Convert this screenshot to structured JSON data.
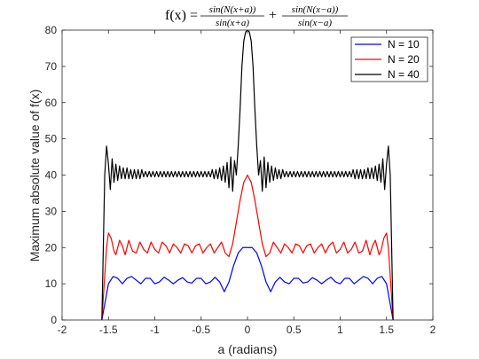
{
  "chart_data": {
    "type": "line",
    "title": {
      "lhs": "f(x) =",
      "term1_num": "sin(N(x+a))",
      "term1_den": "sin(x+a)",
      "plus": "+",
      "term2_num": "sin(N(x−a))",
      "term2_den": "sin(x−a)"
    },
    "xlabel": "a (radians)",
    "ylabel": "Maximum absolute value of f(x)",
    "xlim": [
      -2,
      2
    ],
    "ylim": [
      0,
      80
    ],
    "xticks": [
      -2,
      -1.5,
      -1,
      -0.5,
      0,
      0.5,
      1,
      1.5,
      2
    ],
    "xtick_labels": [
      "-2",
      "-1.5",
      "-1",
      "-0.5",
      "0",
      "0.5",
      "1",
      "1.5",
      "2"
    ],
    "yticks": [
      0,
      10,
      20,
      30,
      40,
      50,
      60,
      70,
      80
    ],
    "ytick_labels": [
      "0",
      "10",
      "20",
      "30",
      "40",
      "50",
      "60",
      "70",
      "80"
    ],
    "legend_position": "top-right",
    "series": [
      {
        "name": "N = 10",
        "N": 10,
        "color": "#0000ff",
        "x": [
          -1.5708,
          -1.5,
          -1.45,
          -1.4,
          -1.35,
          -1.3,
          -1.25,
          -1.2,
          -1.15,
          -1.1,
          -1.05,
          -1.0,
          -0.95,
          -0.9,
          -0.85,
          -0.8,
          -0.75,
          -0.7,
          -0.65,
          -0.6,
          -0.55,
          -0.5,
          -0.45,
          -0.4,
          -0.35,
          -0.3,
          -0.25,
          -0.2,
          -0.15,
          -0.1,
          -0.05,
          0,
          0.05,
          0.1,
          0.15,
          0.2,
          0.25,
          0.3,
          0.35,
          0.4,
          0.45,
          0.5,
          0.55,
          0.6,
          0.65,
          0.7,
          0.75,
          0.8,
          0.85,
          0.9,
          0.95,
          1.0,
          1.05,
          1.1,
          1.15,
          1.2,
          1.25,
          1.3,
          1.35,
          1.4,
          1.45,
          1.5,
          1.5708
        ],
        "y": [
          0,
          10.0,
          12.0,
          11.5,
          10.0,
          11.5,
          12.0,
          11.0,
          10.0,
          11.5,
          11.5,
          10.0,
          10.5,
          11.8,
          11.0,
          10.0,
          11.0,
          11.7,
          10.5,
          10.2,
          11.5,
          11.5,
          10.0,
          10.5,
          11.8,
          10.5,
          7.8,
          10.5,
          15.0,
          18.5,
          20.0,
          20.0,
          20.0,
          18.5,
          15.0,
          10.5,
          7.8,
          10.5,
          11.8,
          10.5,
          10.0,
          11.5,
          11.5,
          10.2,
          10.5,
          11.7,
          11.0,
          10.0,
          11.0,
          11.8,
          10.5,
          10.0,
          11.5,
          11.5,
          10.0,
          11.0,
          12.0,
          11.5,
          10.0,
          11.5,
          12.0,
          10.0,
          0
        ]
      },
      {
        "name": "N = 20",
        "N": 20,
        "color": "#ff0000",
        "x": [
          -1.5708,
          -1.52,
          -1.5,
          -1.47,
          -1.44,
          -1.42,
          -1.38,
          -1.35,
          -1.32,
          -1.28,
          -1.24,
          -1.2,
          -1.16,
          -1.12,
          -1.08,
          -1.04,
          -1.0,
          -0.96,
          -0.92,
          -0.88,
          -0.84,
          -0.8,
          -0.76,
          -0.72,
          -0.68,
          -0.64,
          -0.6,
          -0.56,
          -0.52,
          -0.48,
          -0.44,
          -0.4,
          -0.36,
          -0.32,
          -0.28,
          -0.24,
          -0.2,
          -0.16,
          -0.12,
          -0.08,
          -0.04,
          0,
          0.04,
          0.08,
          0.12,
          0.16,
          0.2,
          0.24,
          0.28,
          0.32,
          0.36,
          0.4,
          0.44,
          0.48,
          0.52,
          0.56,
          0.6,
          0.64,
          0.68,
          0.72,
          0.76,
          0.8,
          0.84,
          0.88,
          0.92,
          0.96,
          1.0,
          1.04,
          1.08,
          1.12,
          1.16,
          1.2,
          1.24,
          1.28,
          1.32,
          1.35,
          1.38,
          1.42,
          1.44,
          1.47,
          1.5,
          1.52,
          1.5708
        ],
        "y": [
          0,
          20.0,
          24.0,
          22.5,
          19.0,
          18.0,
          22.0,
          20.5,
          18.0,
          22.0,
          19.0,
          18.5,
          21.5,
          19.5,
          18.5,
          21.5,
          19.5,
          18.5,
          21.5,
          20.5,
          18.5,
          21.0,
          20.0,
          18.5,
          21.0,
          20.5,
          18.5,
          20.5,
          21.0,
          18.5,
          20.0,
          21.0,
          18.5,
          20.0,
          21.5,
          18.5,
          17.5,
          21.0,
          27.0,
          33.0,
          38.0,
          40.0,
          38.0,
          33.0,
          27.0,
          21.0,
          17.5,
          18.5,
          21.5,
          20.0,
          18.5,
          21.0,
          20.0,
          18.5,
          21.0,
          20.5,
          18.5,
          20.5,
          21.0,
          18.5,
          20.0,
          21.0,
          18.5,
          20.5,
          21.5,
          18.5,
          19.5,
          21.5,
          18.5,
          19.5,
          21.5,
          18.5,
          19.0,
          22.0,
          18.0,
          20.5,
          22.0,
          18.0,
          19.0,
          22.5,
          24.0,
          20.0,
          0
        ]
      },
      {
        "name": "N = 40",
        "N": 40,
        "color": "#000000",
        "x": [
          -1.5708,
          -1.54,
          -1.52,
          -1.5,
          -1.48,
          -1.46,
          -1.44,
          -1.42,
          -1.4,
          -1.38,
          -1.36,
          -1.34,
          -1.32,
          -1.3,
          -1.28,
          -1.26,
          -1.24,
          -1.22,
          -1.2,
          -1.18,
          -1.16,
          -1.14,
          -1.12,
          -1.1,
          -1.08,
          -1.06,
          -1.04,
          -1.02,
          -1.0,
          -0.98,
          -0.96,
          -0.94,
          -0.92,
          -0.9,
          -0.88,
          -0.86,
          -0.84,
          -0.82,
          -0.8,
          -0.78,
          -0.76,
          -0.74,
          -0.72,
          -0.7,
          -0.68,
          -0.66,
          -0.64,
          -0.62,
          -0.6,
          -0.58,
          -0.56,
          -0.54,
          -0.52,
          -0.5,
          -0.48,
          -0.46,
          -0.44,
          -0.42,
          -0.4,
          -0.38,
          -0.36,
          -0.34,
          -0.32,
          -0.3,
          -0.28,
          -0.26,
          -0.24,
          -0.22,
          -0.2,
          -0.18,
          -0.16,
          -0.14,
          -0.12,
          -0.1,
          -0.08,
          -0.06,
          -0.04,
          -0.02,
          0,
          0.02,
          0.04,
          0.06,
          0.08,
          0.1,
          0.12,
          0.14,
          0.16,
          0.18,
          0.2,
          0.22,
          0.24,
          0.26,
          0.28,
          0.3,
          0.32,
          0.34,
          0.36,
          0.38,
          0.4,
          0.42,
          0.44,
          0.46,
          0.48,
          0.5,
          0.52,
          0.54,
          0.56,
          0.58,
          0.6,
          0.62,
          0.64,
          0.66,
          0.68,
          0.7,
          0.72,
          0.74,
          0.76,
          0.78,
          0.8,
          0.82,
          0.84,
          0.86,
          0.88,
          0.9,
          0.92,
          0.94,
          0.96,
          0.98,
          1.0,
          1.02,
          1.04,
          1.06,
          1.08,
          1.1,
          1.12,
          1.14,
          1.16,
          1.18,
          1.2,
          1.22,
          1.24,
          1.26,
          1.28,
          1.3,
          1.32,
          1.34,
          1.36,
          1.38,
          1.4,
          1.42,
          1.44,
          1.46,
          1.48,
          1.5,
          1.52,
          1.54,
          1.5708
        ],
        "y": [
          0,
          40.0,
          48.0,
          43.0,
          36.0,
          44.5,
          38.0,
          43.0,
          38.5,
          42.5,
          39.0,
          42.0,
          39.0,
          42.0,
          39.0,
          41.5,
          39.0,
          41.5,
          39.0,
          41.5,
          39.0,
          41.5,
          39.5,
          41.0,
          39.5,
          41.0,
          39.5,
          41.0,
          39.5,
          41.0,
          39.5,
          41.0,
          39.5,
          41.0,
          39.5,
          41.0,
          39.5,
          41.0,
          39.5,
          41.0,
          39.5,
          41.0,
          39.5,
          41.0,
          39.5,
          41.0,
          39.5,
          41.0,
          39.5,
          41.0,
          39.5,
          41.0,
          39.5,
          41.0,
          39.5,
          41.0,
          39.5,
          41.0,
          39.5,
          41.5,
          39.0,
          41.5,
          39.0,
          42.0,
          38.5,
          42.5,
          38.0,
          43.5,
          36.5,
          45.0,
          35.5,
          44.0,
          40.0,
          48.0,
          58.0,
          70.0,
          77.0,
          79.5,
          80.0,
          79.5,
          77.0,
          70.0,
          58.0,
          48.0,
          40.0,
          44.0,
          35.5,
          45.0,
          36.5,
          43.5,
          38.0,
          42.5,
          38.5,
          42.0,
          39.0,
          41.5,
          39.0,
          41.5,
          39.5,
          41.0,
          39.5,
          41.0,
          39.5,
          41.0,
          39.5,
          41.0,
          39.5,
          41.0,
          39.5,
          41.0,
          39.5,
          41.0,
          39.5,
          41.0,
          39.5,
          41.0,
          39.5,
          41.0,
          39.5,
          41.0,
          39.5,
          41.0,
          39.5,
          41.0,
          39.5,
          41.0,
          39.5,
          41.0,
          39.5,
          41.0,
          39.5,
          41.0,
          39.5,
          41.0,
          39.5,
          41.5,
          39.0,
          41.5,
          39.0,
          41.5,
          39.0,
          41.5,
          39.0,
          42.0,
          39.0,
          42.0,
          39.0,
          42.5,
          38.5,
          43.0,
          38.0,
          44.5,
          36.0,
          43.0,
          48.0,
          40.0,
          0
        ]
      }
    ]
  }
}
